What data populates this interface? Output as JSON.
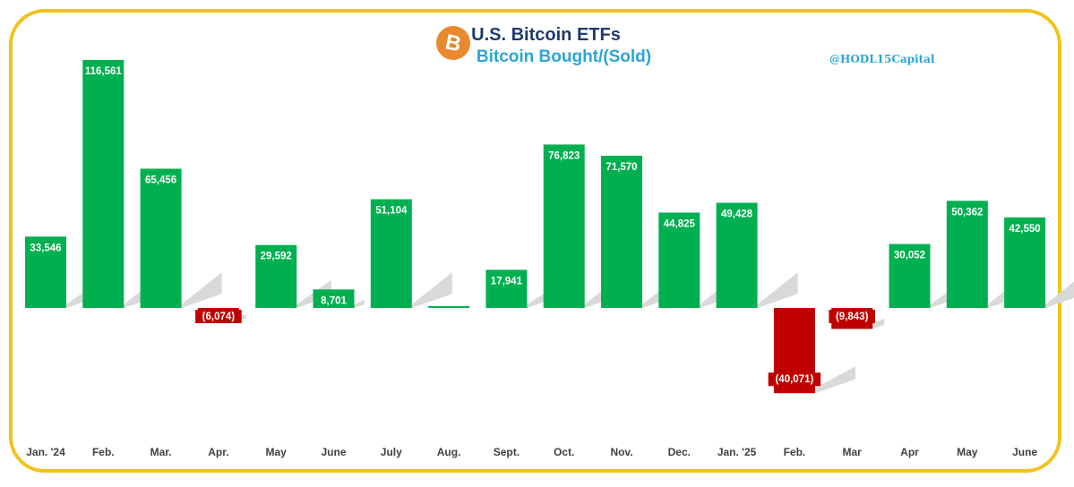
{
  "header": {
    "title": "U.S. Bitcoin ETFs",
    "subtitle": "Bitcoin Bought/(Sold)",
    "handle": "@HODL15Capital",
    "logo_icon": "bitcoin-icon"
  },
  "colors": {
    "positive": "#00B050",
    "negative": "#C00000",
    "border": "#F2C31C",
    "title": "#1F3A6E",
    "subtitle": "#2AA5D8"
  },
  "chart_data": {
    "type": "bar",
    "title": "U.S. Bitcoin ETFs",
    "subtitle": "Bitcoin Bought/(Sold)",
    "xlabel": "",
    "ylabel": "",
    "categories": [
      "Jan. '24",
      "Feb.",
      "Mar.",
      "Apr.",
      "May",
      "June",
      "July",
      "Aug.",
      "Sept.",
      "Oct.",
      "Nov.",
      "Dec.",
      "Jan. '25",
      "Feb.",
      "Mar",
      "Apr",
      "May",
      "June"
    ],
    "values": [
      33546,
      116561,
      65456,
      -6074,
      29592,
      8701,
      51104,
      800,
      17941,
      76823,
      71570,
      44825,
      49428,
      -40071,
      -9843,
      30052,
      50362,
      42550
    ],
    "data_labels": [
      "33,546",
      "116,561",
      "65,456",
      "(6,074)",
      "29,592",
      "8,701",
      "51,104",
      "",
      "17,941",
      "76,823",
      "71,570",
      "44,825",
      "49,428",
      "(40,071)",
      "(9,843)",
      "30,052",
      "50,362",
      "42,550"
    ],
    "grid": false,
    "legend": "none"
  }
}
